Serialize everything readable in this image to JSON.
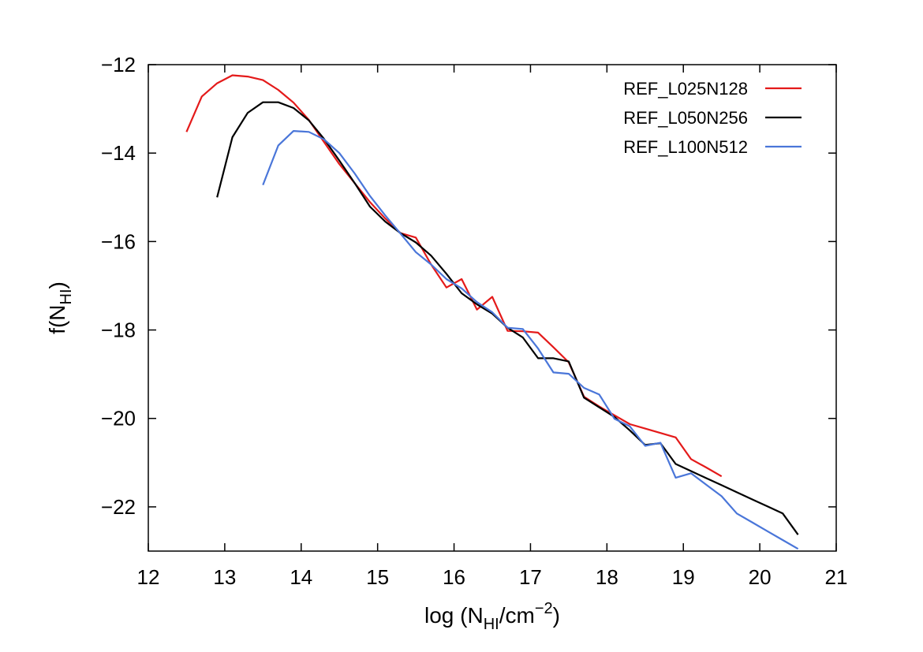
{
  "chart_data": {
    "type": "line",
    "xlabel": {
      "base": "log (N",
      "sub": "HI",
      "mid": "/cm",
      "sup": "−2",
      "end": ")"
    },
    "ylabel": {
      "base": "f(N",
      "sub": "HI",
      "end": ")"
    },
    "xlim": [
      12,
      21
    ],
    "ylim": [
      -23,
      -12
    ],
    "xticks": [
      12,
      13,
      14,
      15,
      16,
      17,
      18,
      19,
      20,
      21
    ],
    "yticks": [
      -22,
      -20,
      -18,
      -16,
      -14,
      -12
    ],
    "xtick_labels": [
      "12",
      "13",
      "14",
      "15",
      "16",
      "17",
      "18",
      "19",
      "20",
      "21"
    ],
    "ytick_labels": [
      "−22",
      "−20",
      "−18",
      "−16",
      "−14",
      "−12"
    ],
    "grid": false,
    "legend_position": "top-right",
    "series": [
      {
        "name": "REF_L025N128",
        "color": "#e41a1a",
        "x": [
          12.5,
          12.7,
          12.9,
          13.1,
          13.3,
          13.5,
          13.7,
          13.9,
          14.1,
          14.3,
          14.5,
          14.7,
          14.9,
          15.1,
          15.3,
          15.5,
          15.7,
          15.9,
          16.1,
          16.3,
          16.5,
          16.7,
          16.9,
          17.1,
          17.3,
          17.5,
          17.7,
          17.9,
          18.1,
          18.3,
          18.5,
          18.7,
          18.9,
          19.1,
          19.3,
          19.5
        ],
        "y": [
          -13.52,
          -12.72,
          -12.42,
          -12.24,
          -12.27,
          -12.35,
          -12.57,
          -12.86,
          -13.25,
          -13.75,
          -14.25,
          -14.68,
          -15.11,
          -15.48,
          -15.81,
          -15.91,
          -16.52,
          -17.04,
          -16.85,
          -17.54,
          -17.25,
          -18.02,
          -18.03,
          -18.06,
          -18.39,
          -18.73,
          -19.51,
          -19.73,
          -19.93,
          -20.13,
          -20.23,
          -20.33,
          -20.43,
          -20.92,
          -21.11,
          -21.31
        ]
      },
      {
        "name": "REF_L050N256",
        "color": "#000000",
        "x": [
          12.9,
          13.1,
          13.3,
          13.5,
          13.7,
          13.9,
          14.1,
          14.3,
          14.5,
          14.7,
          14.9,
          15.1,
          15.3,
          15.5,
          15.7,
          15.9,
          16.1,
          16.3,
          16.5,
          16.7,
          16.9,
          17.1,
          17.3,
          17.5,
          17.7,
          17.9,
          18.1,
          18.3,
          18.5,
          18.7,
          18.9,
          19.1,
          19.3,
          19.5,
          19.7,
          19.9,
          20.1,
          20.3,
          20.5
        ],
        "y": [
          -15.0,
          -13.64,
          -13.09,
          -12.85,
          -12.85,
          -12.98,
          -13.26,
          -13.68,
          -14.17,
          -14.68,
          -15.21,
          -15.55,
          -15.81,
          -16.02,
          -16.32,
          -16.73,
          -17.17,
          -17.42,
          -17.63,
          -17.95,
          -18.17,
          -18.64,
          -18.64,
          -18.71,
          -19.53,
          -19.75,
          -19.97,
          -20.27,
          -20.6,
          -20.56,
          -21.03,
          -21.19,
          -21.35,
          -21.51,
          -21.67,
          -21.83,
          -21.99,
          -22.15,
          -22.63
        ]
      },
      {
        "name": "REF_L100N512",
        "color": "#4a76d9",
        "x": [
          13.5,
          13.7,
          13.9,
          14.1,
          14.3,
          14.5,
          14.7,
          14.9,
          15.1,
          15.3,
          15.5,
          15.7,
          15.9,
          16.1,
          16.3,
          16.5,
          16.7,
          16.9,
          17.1,
          17.3,
          17.5,
          17.7,
          17.9,
          18.1,
          18.3,
          18.5,
          18.7,
          18.9,
          19.1,
          19.3,
          19.5,
          19.7,
          19.9,
          20.1,
          20.3,
          20.5
        ],
        "y": [
          -14.72,
          -13.83,
          -13.5,
          -13.52,
          -13.69,
          -14.0,
          -14.46,
          -14.97,
          -15.41,
          -15.82,
          -16.24,
          -16.52,
          -16.85,
          -17.06,
          -17.37,
          -17.6,
          -17.95,
          -17.98,
          -18.42,
          -18.96,
          -18.99,
          -19.31,
          -19.46,
          -20.01,
          -20.18,
          -20.62,
          -20.55,
          -21.34,
          -21.24,
          -21.5,
          -21.76,
          -22.15,
          -22.35,
          -22.55,
          -22.75,
          -22.95
        ]
      }
    ]
  }
}
